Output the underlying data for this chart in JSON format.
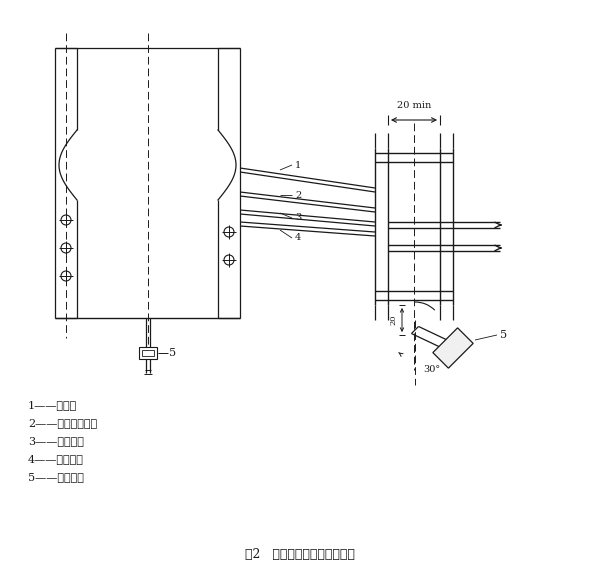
{
  "title": "图2   燃气灯与试样关系示意图",
  "legend_items": [
    "1——试样：",
    "2——试样固定架：",
    "3——定位柱：",
    "4——固定针：",
    "5——燃气灯。"
  ],
  "bg_color": "#ffffff",
  "line_color": "#1a1a1a",
  "dim_20mm": "20 min",
  "dim_20": "20",
  "dim_30": "30°"
}
